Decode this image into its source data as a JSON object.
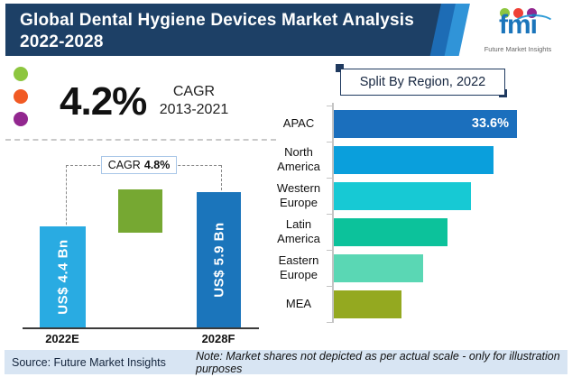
{
  "header": {
    "title_line1": "Global Dental Hygiene Devices Market Analysis",
    "title_line2": "2022-2028",
    "bg_color": "#1d4066"
  },
  "logo": {
    "brand": "fmi",
    "brand_color": "#1b75bb",
    "tagline": "Future Market Insights",
    "dot_colors": [
      "#8dc63f",
      "#ef4136",
      "#92278f"
    ]
  },
  "kpi": {
    "value": "4.2%",
    "metric": "CAGR",
    "period": "2013-2021",
    "dot_colors": [
      "#8dc63f",
      "#f15a24",
      "#92278f"
    ]
  },
  "chart_data": [
    {
      "type": "bar",
      "title": "",
      "categories": [
        "2022E",
        "2028F"
      ],
      "values": [
        4.4,
        5.9
      ],
      "unit": "US$ Bn",
      "bar_labels": [
        "US$ 4.4 Bn",
        "US$ 5.9 Bn"
      ],
      "bar_colors": [
        "#29abe2",
        "#1b75bb"
      ],
      "growth_block_color": "#76a832",
      "annotation_label": "CAGR",
      "annotation_value": "4.8%",
      "ylim": [
        0,
        6.5
      ],
      "grid": false
    },
    {
      "type": "bar",
      "orientation": "horizontal",
      "title": "Split By Region, 2022",
      "categories": [
        "APAC",
        "North America",
        "Western Europe",
        "Latin America",
        "Eastern Europe",
        "MEA"
      ],
      "value_labels": [
        "33.6%",
        "",
        "",
        "",
        "",
        ""
      ],
      "values_labeled": [
        33.6,
        null,
        null,
        null,
        null,
        null
      ],
      "bar_length_pct_of_max": [
        100,
        87,
        75,
        62,
        49,
        37
      ],
      "bar_colors": [
        "#1b6fbd",
        "#0a9fdc",
        "#17c9d4",
        "#0cc29b",
        "#5ad7b4",
        "#94a920"
      ],
      "grid": false,
      "scale_note": "bar lengths illustrative only"
    }
  ],
  "footer": {
    "source": "Source: Future Market Insights",
    "note": "Note: Market shares not depicted as per actual scale - only for illustration purposes",
    "bg_color": "#d8e5f3"
  }
}
